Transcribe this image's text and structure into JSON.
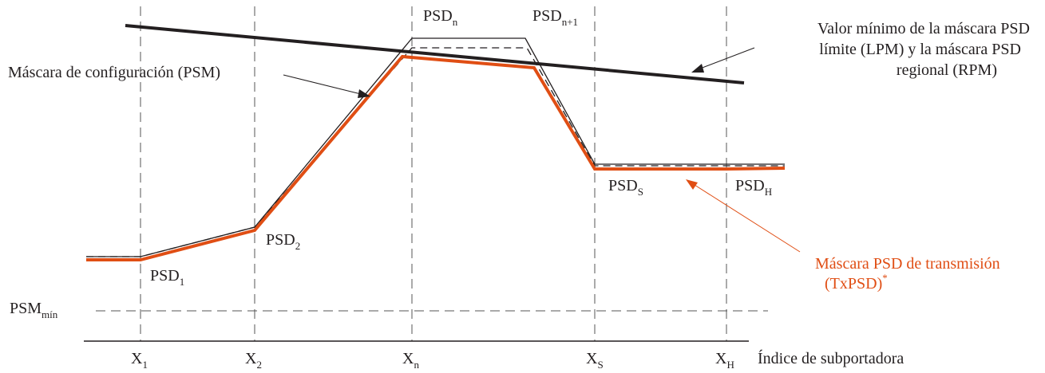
{
  "labels": {
    "upper_limit": [
      "Valor mínimo de la máscara PSD",
      "límite (LPM) y la máscara PSD",
      "regional (RPM)"
    ],
    "psm": "Máscara de configuración (PSM)",
    "txpsd_line1": "Máscara PSD de transmisión",
    "txpsd_line2": "(TxPSD)",
    "txpsd_mark": "*",
    "psm_min": {
      "main": "PSM",
      "sub": "mín"
    },
    "psd_1": {
      "main": "PSD",
      "sub": "1"
    },
    "psd_2": {
      "main": "PSD",
      "sub": "2"
    },
    "psd_n": {
      "main": "PSD",
      "sub": "n"
    },
    "psd_n1": {
      "main": "PSD",
      "sub": "n+1"
    },
    "psd_s": {
      "main": "PSD",
      "sub": "S"
    },
    "psd_h": {
      "main": "PSD",
      "sub": "H"
    },
    "x_1": {
      "main": "X",
      "sub": "1"
    },
    "x_2": {
      "main": "X",
      "sub": "2"
    },
    "x_n": {
      "main": "X",
      "sub": "n"
    },
    "x_s": {
      "main": "X",
      "sub": "S"
    },
    "x_h": {
      "main": "X",
      "sub": "H"
    },
    "x_axis_title": "Índice de subportadora"
  },
  "colors": {
    "txpsd": "#e04e14",
    "lines": "#231f20",
    "dashed": "#555555"
  }
}
